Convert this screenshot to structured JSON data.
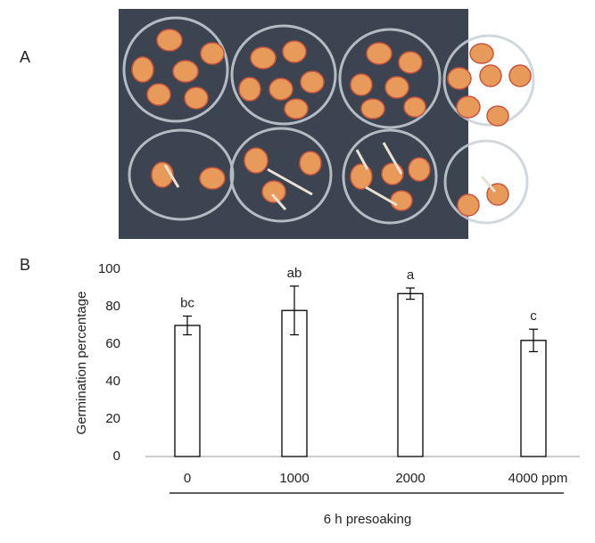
{
  "figure": {
    "panel_a_label": "A",
    "panel_b_label": "B"
  },
  "chart_data": {
    "type": "bar",
    "categories": [
      "0",
      "1000",
      "2000",
      "4000 ppm"
    ],
    "values": [
      70,
      78,
      87,
      62
    ],
    "errors": [
      5,
      13,
      3,
      6
    ],
    "annotations": [
      "bc",
      "ab",
      "a",
      "c"
    ],
    "color": "#ffffff",
    "y_label": "Germination percentage",
    "x_label": "6 h presoaking",
    "ylim": [
      0,
      100
    ],
    "yticks": [
      0,
      20,
      40,
      60,
      80,
      100
    ],
    "grid": false
  }
}
